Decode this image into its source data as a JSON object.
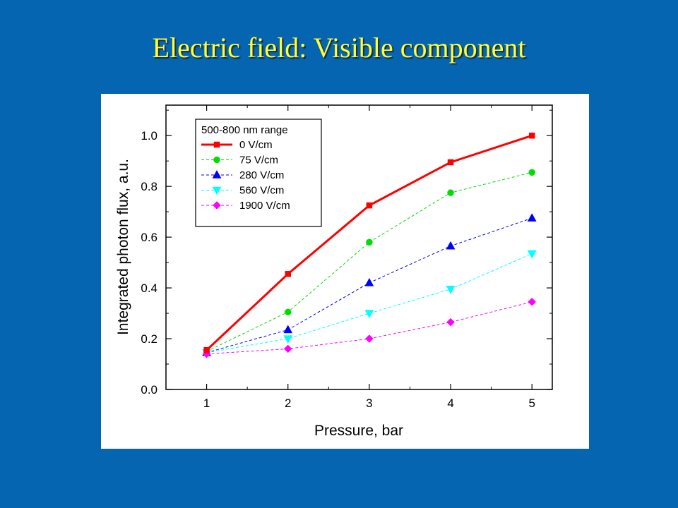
{
  "slide": {
    "title": "Electric field: Visible component"
  },
  "chart_data": {
    "type": "line",
    "xlabel": "Pressure, bar",
    "ylabel": "Integrated photon flux, a.u.",
    "xlim": [
      0.5,
      5.25
    ],
    "ylim": [
      0.0,
      1.12
    ],
    "xticks": [
      1,
      2,
      3,
      4,
      5
    ],
    "yticks": [
      0.0,
      0.2,
      0.4,
      0.6,
      0.8,
      1.0
    ],
    "grid": false,
    "legend": {
      "title": "500-800 nm range",
      "placement": "top-left"
    },
    "x": [
      1,
      2,
      3,
      4,
      5
    ],
    "series": [
      {
        "name": "0 V/cm",
        "values": [
          0.155,
          0.455,
          0.725,
          0.895,
          1.0
        ],
        "color": "#ff0000",
        "marker": "square",
        "line": "solid"
      },
      {
        "name": "75 V/cm",
        "values": [
          0.15,
          0.305,
          0.58,
          0.775,
          0.855
        ],
        "color": "#00dd00",
        "marker": "circle",
        "line": "dashed"
      },
      {
        "name": "280 V/cm",
        "values": [
          0.145,
          0.235,
          0.42,
          0.565,
          0.675
        ],
        "color": "#0000ff",
        "marker": "triangle-up",
        "line": "dashed"
      },
      {
        "name": "560 V/cm",
        "values": [
          0.145,
          0.2,
          0.3,
          0.395,
          0.535
        ],
        "color": "#00ffff",
        "marker": "triangle-down",
        "line": "dashed"
      },
      {
        "name": "1900 V/cm",
        "values": [
          0.14,
          0.16,
          0.2,
          0.265,
          0.345
        ],
        "color": "#ff00ff",
        "marker": "diamond",
        "line": "dashed"
      }
    ]
  }
}
